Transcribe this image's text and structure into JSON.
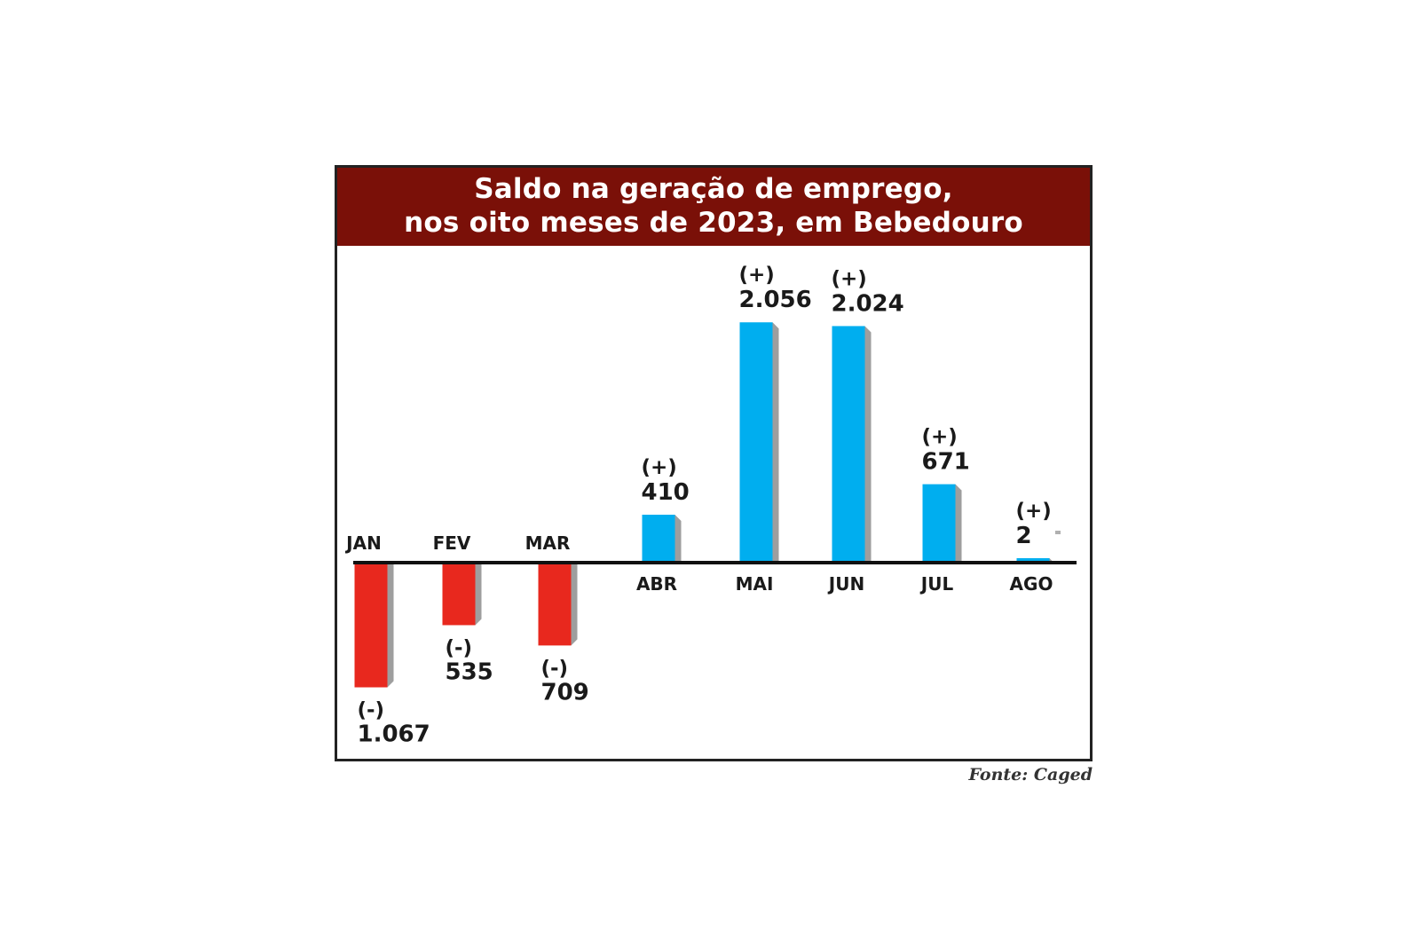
{
  "chart_data": {
    "type": "bar",
    "title": "Saldo na geração de emprego,",
    "subtitle": "nos oito meses de 2023, em Bebedouro",
    "categories": [
      "JAN",
      "FEV",
      "MAR",
      "ABR",
      "MAI",
      "JUN",
      "JUL",
      "AGO"
    ],
    "values": [
      -1067,
      -535,
      -709,
      410,
      2056,
      2024,
      671,
      2
    ],
    "value_labels": [
      "1.067",
      "535",
      "709",
      "410",
      "2.056",
      "2.024",
      "671",
      "2"
    ],
    "sign_labels": [
      "(-)",
      "(-)",
      "(-)",
      "(+)",
      "(+)",
      "(+)",
      "(+)",
      "(+)"
    ],
    "grid": false,
    "legend": "none",
    "colors": {
      "positive": "#00aeef",
      "negative": "#e8281e",
      "shadow": "#9e9e9e",
      "axis": "#111111",
      "header": "#7a1008"
    }
  },
  "source": "Fonte: Caged"
}
